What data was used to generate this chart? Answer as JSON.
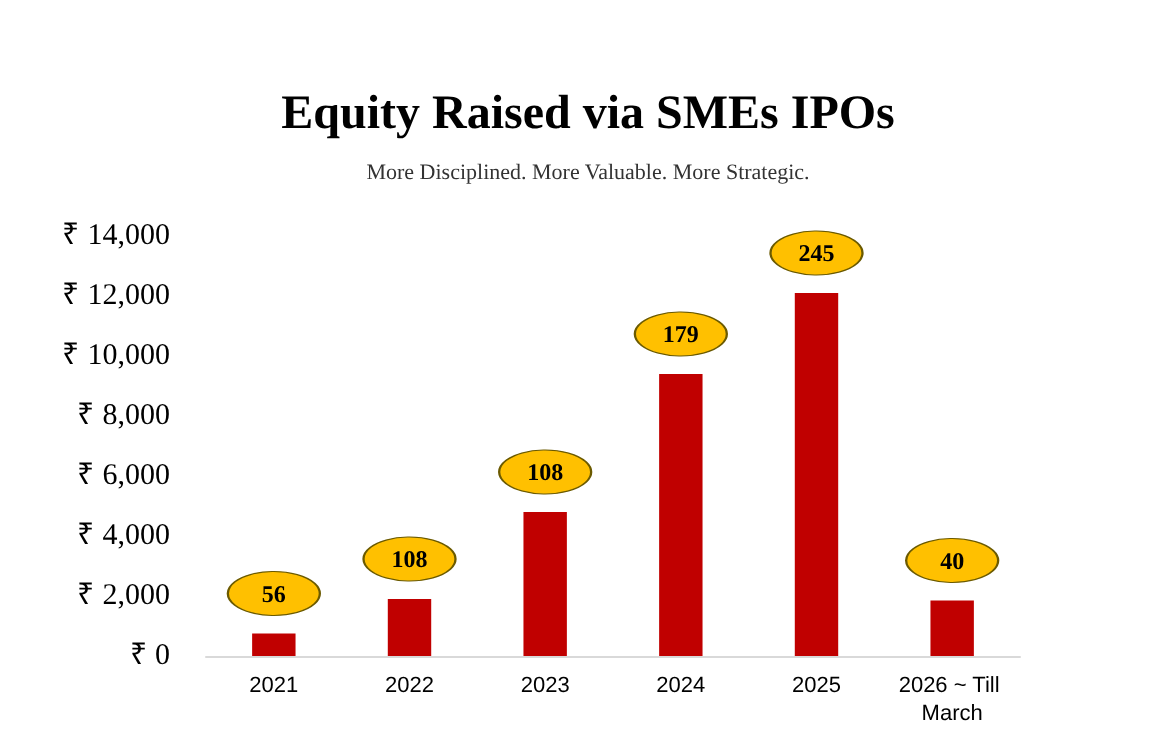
{
  "chart_data": {
    "type": "bar",
    "title": "Equity Raised via SMEs IPOs",
    "subtitle": "More Disciplined. More Valuable. More Strategic.",
    "categories": [
      "2021",
      "2022",
      "2023",
      "2024",
      "2025",
      "2026 ~ Till March"
    ],
    "values": [
      750,
      1900,
      4800,
      9400,
      12100,
      1850
    ],
    "color": "#c00000",
    "ylim": [
      0,
      14000
    ],
    "yticks": [
      {
        "value": 0,
        "label": "₹ 0"
      },
      {
        "value": 2000,
        "label": "₹ 2,000"
      },
      {
        "value": 4000,
        "label": "₹ 4,000"
      },
      {
        "value": 6000,
        "label": "₹ 6,000"
      },
      {
        "value": 8000,
        "label": "₹ 8,000"
      },
      {
        "value": 10000,
        "label": "₹ 10,000"
      },
      {
        "value": 12000,
        "label": "₹ 12,000"
      },
      {
        "value": 14000,
        "label": "₹ 14,000"
      }
    ],
    "annotations": [
      "56",
      "108",
      "108",
      "179",
      "245",
      "40"
    ]
  }
}
